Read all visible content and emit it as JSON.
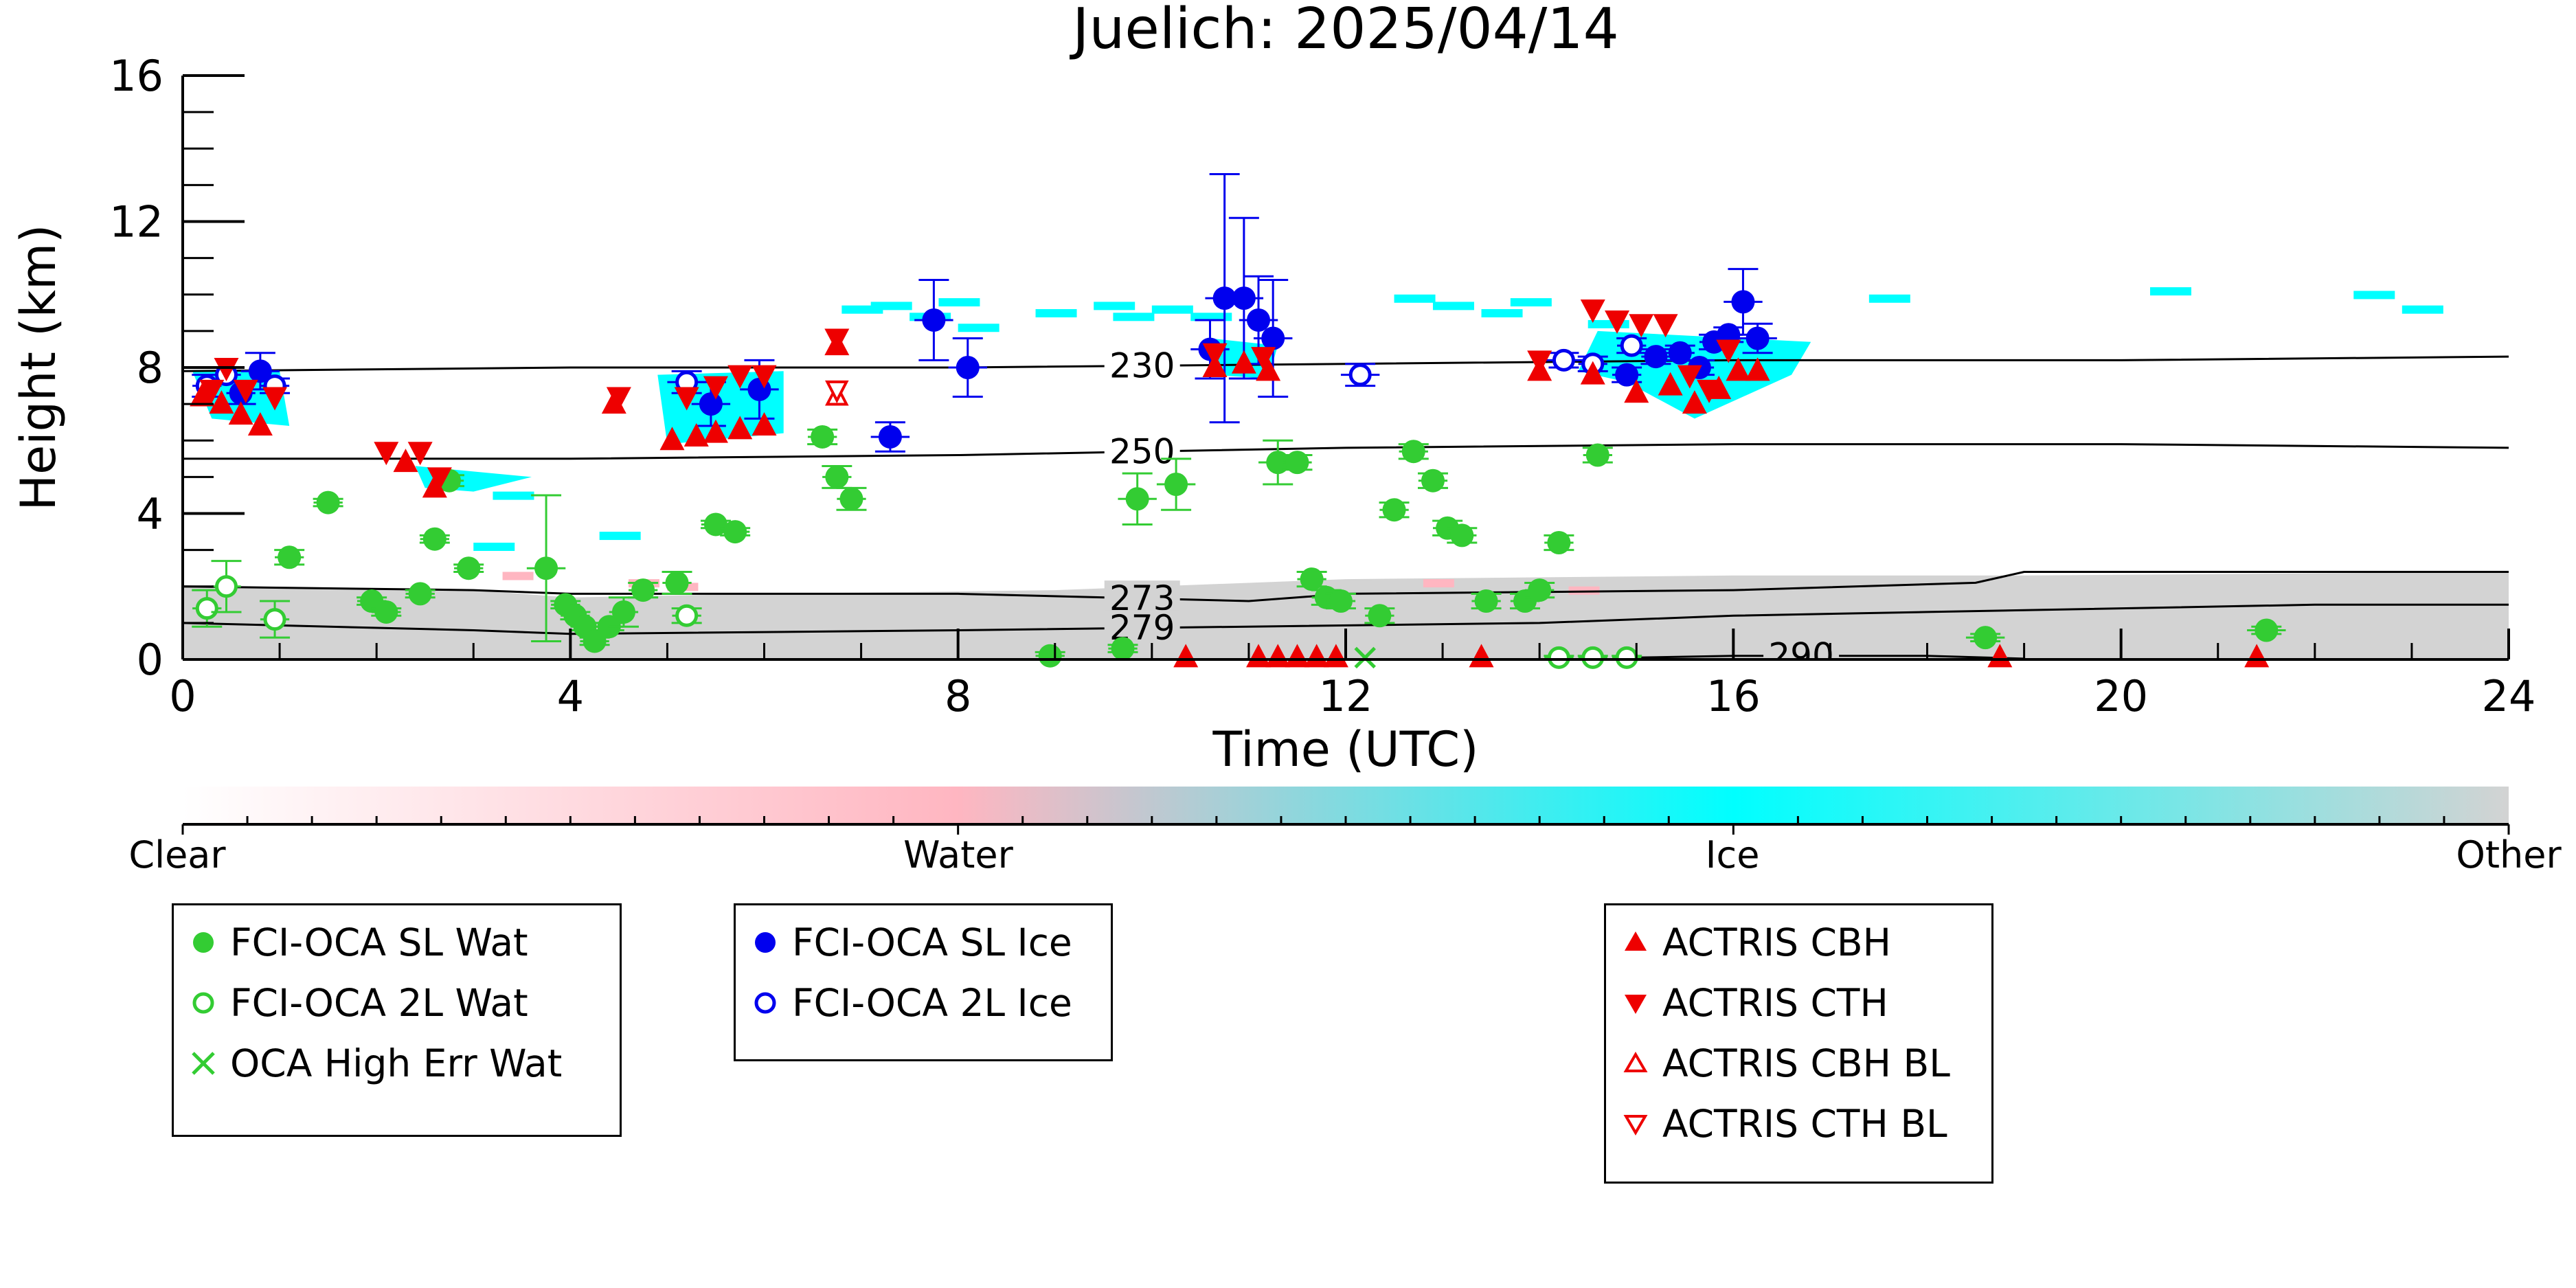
{
  "chart_data": {
    "type": "scatter",
    "title": "Juelich: 2025/04/14",
    "xlabel": "Time (UTC)",
    "ylabel": "Height (km)",
    "xlim": [
      0,
      24
    ],
    "ylim": [
      0,
      16
    ],
    "xticks": [
      0,
      4,
      8,
      12,
      16,
      20,
      24
    ],
    "yticks": [
      0,
      4,
      8,
      12,
      16
    ],
    "xtick_labels": [
      "0",
      "4",
      "8",
      "12",
      "16",
      "20",
      "24"
    ],
    "ytick_labels": [
      "0",
      "4",
      "8",
      "12",
      "16"
    ],
    "isotherms": [
      {
        "label": "230",
        "label_x": 9.9,
        "points": [
          [
            0,
            7.9
          ],
          [
            4,
            8.0
          ],
          [
            8,
            8.0
          ],
          [
            12,
            8.1
          ],
          [
            16,
            8.2
          ],
          [
            20,
            8.2
          ],
          [
            24,
            8.3
          ]
        ]
      },
      {
        "label": "250",
        "label_x": 9.9,
        "points": [
          [
            0,
            5.5
          ],
          [
            4,
            5.5
          ],
          [
            8,
            5.6
          ],
          [
            12,
            5.8
          ],
          [
            16,
            5.9
          ],
          [
            20,
            5.9
          ],
          [
            24,
            5.8
          ]
        ]
      },
      {
        "label": "273",
        "label_x": 9.9,
        "points": [
          [
            0,
            2.0
          ],
          [
            3,
            1.9
          ],
          [
            4,
            1.8
          ],
          [
            8,
            1.8
          ],
          [
            11,
            1.6
          ],
          [
            12,
            1.8
          ],
          [
            16,
            1.9
          ],
          [
            18.5,
            2.1
          ],
          [
            19,
            2.4
          ],
          [
            24,
            2.4
          ]
        ]
      },
      {
        "label": "279",
        "label_x": 9.9,
        "points": [
          [
            0,
            1.0
          ],
          [
            3,
            0.8
          ],
          [
            4,
            0.7
          ],
          [
            8,
            0.8
          ],
          [
            11,
            0.9
          ],
          [
            14,
            1.0
          ],
          [
            16,
            1.2
          ],
          [
            18,
            1.3
          ],
          [
            22,
            1.5
          ],
          [
            24,
            1.5
          ]
        ]
      },
      {
        "label": "290",
        "label_x": 16.7,
        "points": [
          [
            15,
            0.05
          ],
          [
            16,
            0.1
          ],
          [
            18,
            0.1
          ],
          [
            19,
            0.02
          ]
        ]
      }
    ],
    "cloudnet_colorbar": {
      "labels": [
        "Clear",
        "Water",
        "Ice",
        "Other"
      ],
      "colors": [
        "#ffffff",
        "#ffb6c1",
        "#00ffff",
        "#d3d3d3"
      ]
    },
    "series": [
      {
        "name": "FCI-OCA SL Wat",
        "marker": "filled-circle",
        "color": "#33cc33",
        "points": [
          {
            "x": 1.1,
            "y": 2.8,
            "xerr": 0.15,
            "yerr": 0.2
          },
          {
            "x": 1.5,
            "y": 4.3,
            "xerr": 0.15,
            "yerr": 0.1
          },
          {
            "x": 1.95,
            "y": 1.6,
            "xerr": 0.15,
            "yerr": 0.1
          },
          {
            "x": 2.1,
            "y": 1.3,
            "xerr": 0.15,
            "yerr": 0.1
          },
          {
            "x": 2.45,
            "y": 1.8,
            "xerr": 0.15,
            "yerr": 0.1
          },
          {
            "x": 2.6,
            "y": 3.3,
            "xerr": 0.15,
            "yerr": 0.1
          },
          {
            "x": 2.75,
            "y": 4.9,
            "xerr": 0.15,
            "yerr": 0.15
          },
          {
            "x": 2.95,
            "y": 2.5,
            "xerr": 0.15,
            "yerr": 0.1
          },
          {
            "x": 3.75,
            "y": 2.5,
            "xerr": 0.2,
            "yerr": 2.0
          },
          {
            "x": 3.95,
            "y": 1.5,
            "xerr": 0.15,
            "yerr": 0.1
          },
          {
            "x": 4.05,
            "y": 1.2,
            "xerr": 0.15,
            "yerr": 0.1
          },
          {
            "x": 4.15,
            "y": 0.9,
            "xerr": 0.15,
            "yerr": 0.1
          },
          {
            "x": 4.25,
            "y": 0.5,
            "xerr": 0.15,
            "yerr": 0.1
          },
          {
            "x": 4.4,
            "y": 0.9,
            "xerr": 0.15,
            "yerr": 0.1
          },
          {
            "x": 4.55,
            "y": 1.3,
            "xerr": 0.15,
            "yerr": 0.4
          },
          {
            "x": 4.75,
            "y": 1.9,
            "xerr": 0.15,
            "yerr": 0.2
          },
          {
            "x": 5.1,
            "y": 2.1,
            "xerr": 0.15,
            "yerr": 0.3
          },
          {
            "x": 5.5,
            "y": 3.7,
            "xerr": 0.15,
            "yerr": 0.1
          },
          {
            "x": 5.7,
            "y": 3.5,
            "xerr": 0.15,
            "yerr": 0.1
          },
          {
            "x": 6.6,
            "y": 6.1,
            "xerr": 0.15,
            "yerr": 0.2
          },
          {
            "x": 6.75,
            "y": 5.0,
            "xerr": 0.15,
            "yerr": 0.3
          },
          {
            "x": 6.9,
            "y": 4.4,
            "xerr": 0.15,
            "yerr": 0.3
          },
          {
            "x": 8.95,
            "y": 0.1,
            "xerr": 0.15,
            "yerr": 0.1
          },
          {
            "x": 9.7,
            "y": 0.3,
            "xerr": 0.15,
            "yerr": 0.1
          },
          {
            "x": 9.85,
            "y": 4.4,
            "xerr": 0.2,
            "yerr": 0.7
          },
          {
            "x": 10.25,
            "y": 4.8,
            "xerr": 0.2,
            "yerr": 0.7
          },
          {
            "x": 11.3,
            "y": 5.4,
            "xerr": 0.2,
            "yerr": 0.6
          },
          {
            "x": 11.5,
            "y": 5.4,
            "xerr": 0.15,
            "yerr": 0.2
          },
          {
            "x": 11.65,
            "y": 2.2,
            "xerr": 0.15,
            "yerr": 0.2
          },
          {
            "x": 11.8,
            "y": 1.7,
            "xerr": 0.15,
            "yerr": 0.2
          },
          {
            "x": 11.95,
            "y": 1.6,
            "xerr": 0.15,
            "yerr": 0.2
          },
          {
            "x": 12.35,
            "y": 1.2,
            "xerr": 0.15,
            "yerr": 0.2
          },
          {
            "x": 12.5,
            "y": 4.1,
            "xerr": 0.15,
            "yerr": 0.2
          },
          {
            "x": 12.7,
            "y": 5.7,
            "xerr": 0.15,
            "yerr": 0.2
          },
          {
            "x": 12.9,
            "y": 4.9,
            "xerr": 0.15,
            "yerr": 0.2
          },
          {
            "x": 13.05,
            "y": 3.6,
            "xerr": 0.15,
            "yerr": 0.2
          },
          {
            "x": 13.2,
            "y": 3.4,
            "xerr": 0.15,
            "yerr": 0.2
          },
          {
            "x": 13.45,
            "y": 1.6,
            "xerr": 0.15,
            "yerr": 0.2
          },
          {
            "x": 13.85,
            "y": 1.6,
            "xerr": 0.15,
            "yerr": 0.2
          },
          {
            "x": 14.0,
            "y": 1.9,
            "xerr": 0.15,
            "yerr": 0.2
          },
          {
            "x": 14.2,
            "y": 3.2,
            "xerr": 0.15,
            "yerr": 0.2
          },
          {
            "x": 14.6,
            "y": 5.6,
            "xerr": 0.15,
            "yerr": 0.2
          },
          {
            "x": 18.6,
            "y": 0.6,
            "xerr": 0.2,
            "yerr": 0.1
          },
          {
            "x": 21.5,
            "y": 0.8,
            "xerr": 0.2,
            "yerr": 0.1
          }
        ]
      },
      {
        "name": "FCI-OCA 2L Wat",
        "marker": "open-circle",
        "color": "#33cc33",
        "points": [
          {
            "x": 0.25,
            "y": 1.4,
            "xerr": 0.15,
            "yerr": 0.5
          },
          {
            "x": 0.45,
            "y": 2.0,
            "xerr": 0.15,
            "yerr": 0.7
          },
          {
            "x": 0.95,
            "y": 1.1,
            "xerr": 0.15,
            "yerr": 0.5
          },
          {
            "x": 5.2,
            "y": 1.2,
            "xerr": 0.15,
            "yerr": 0.2
          },
          {
            "x": 14.2,
            "y": 0.05,
            "xerr": 0.15,
            "yerr": 0.05
          },
          {
            "x": 14.55,
            "y": 0.05,
            "xerr": 0.15,
            "yerr": 0.05
          },
          {
            "x": 14.9,
            "y": 0.05,
            "xerr": 0.15,
            "yerr": 0.05
          }
        ]
      },
      {
        "name": "OCA High Err Wat",
        "marker": "x",
        "color": "#33cc33",
        "points": [
          {
            "x": 12.2,
            "y": 0.05
          }
        ]
      },
      {
        "name": "FCI-OCA SL Ice",
        "marker": "filled-circle",
        "color": "#0000ee",
        "points": [
          {
            "x": 0.6,
            "y": 7.3,
            "xerr": 0.15,
            "yerr": 0.3
          },
          {
            "x": 0.8,
            "y": 7.9,
            "xerr": 0.2,
            "yerr": 0.5
          },
          {
            "x": 5.45,
            "y": 7.0,
            "xerr": 0.2,
            "yerr": 0.6
          },
          {
            "x": 5.95,
            "y": 7.4,
            "xerr": 0.2,
            "yerr": 0.8
          },
          {
            "x": 7.3,
            "y": 6.1,
            "xerr": 0.2,
            "yerr": 0.4
          },
          {
            "x": 7.75,
            "y": 9.3,
            "xerr": 0.2,
            "yerr": 1.1
          },
          {
            "x": 8.1,
            "y": 8.0,
            "xerr": 0.2,
            "yerr": 0.8
          },
          {
            "x": 10.6,
            "y": 8.5,
            "xerr": 0.2,
            "yerr": 0.8
          },
          {
            "x": 10.75,
            "y": 9.9,
            "xerr": 0.2,
            "yerr": 3.4
          },
          {
            "x": 10.95,
            "y": 9.9,
            "xerr": 0.2,
            "yerr": 2.2
          },
          {
            "x": 11.1,
            "y": 9.3,
            "xerr": 0.2,
            "yerr": 1.2
          },
          {
            "x": 11.25,
            "y": 8.8,
            "xerr": 0.2,
            "yerr": 1.6
          },
          {
            "x": 14.9,
            "y": 7.8,
            "xerr": 0.15,
            "yerr": 0.2
          },
          {
            "x": 15.2,
            "y": 8.3,
            "xerr": 0.15,
            "yerr": 0.2
          },
          {
            "x": 15.45,
            "y": 8.4,
            "xerr": 0.15,
            "yerr": 0.2
          },
          {
            "x": 15.65,
            "y": 8.0,
            "xerr": 0.15,
            "yerr": 0.2
          },
          {
            "x": 15.8,
            "y": 8.7,
            "xerr": 0.15,
            "yerr": 0.2
          },
          {
            "x": 15.95,
            "y": 8.9,
            "xerr": 0.15,
            "yerr": 0.2
          },
          {
            "x": 16.1,
            "y": 9.8,
            "xerr": 0.2,
            "yerr": 0.9
          },
          {
            "x": 16.25,
            "y": 8.8,
            "xerr": 0.2,
            "yerr": 0.4
          }
        ]
      },
      {
        "name": "FCI-OCA 2L Ice",
        "marker": "open-circle",
        "color": "#0000ee",
        "points": [
          {
            "x": 0.25,
            "y": 7.5,
            "xerr": 0.15,
            "yerr": 0.3
          },
          {
            "x": 0.45,
            "y": 7.8,
            "xerr": 0.15,
            "yerr": 0.2
          },
          {
            "x": 0.95,
            "y": 7.5,
            "xerr": 0.15,
            "yerr": 0.2
          },
          {
            "x": 5.2,
            "y": 7.6,
            "xerr": 0.2,
            "yerr": 0.3
          },
          {
            "x": 12.15,
            "y": 7.8,
            "xerr": 0.2,
            "yerr": 0.3
          },
          {
            "x": 14.25,
            "y": 8.2,
            "xerr": 0.2,
            "yerr": 0.2
          },
          {
            "x": 14.55,
            "y": 8.1,
            "xerr": 0.15,
            "yerr": 0.2
          },
          {
            "x": 14.95,
            "y": 8.6,
            "xerr": 0.15,
            "yerr": 0.2
          }
        ]
      },
      {
        "name": "ACTRIS CBH",
        "marker": "triangle-up",
        "color": "#ee0000",
        "points": [
          {
            "x": 0.2,
            "y": 7.2
          },
          {
            "x": 0.4,
            "y": 7.0
          },
          {
            "x": 0.6,
            "y": 6.7
          },
          {
            "x": 0.8,
            "y": 6.4
          },
          {
            "x": 2.3,
            "y": 5.4
          },
          {
            "x": 2.6,
            "y": 4.7
          },
          {
            "x": 4.45,
            "y": 7.0
          },
          {
            "x": 5.05,
            "y": 6.0
          },
          {
            "x": 5.3,
            "y": 6.1
          },
          {
            "x": 5.5,
            "y": 6.2
          },
          {
            "x": 5.75,
            "y": 6.3
          },
          {
            "x": 6.0,
            "y": 6.4
          },
          {
            "x": 6.75,
            "y": 8.6
          },
          {
            "x": 10.35,
            "y": 0.05
          },
          {
            "x": 10.65,
            "y": 8.0
          },
          {
            "x": 10.95,
            "y": 8.1
          },
          {
            "x": 11.2,
            "y": 7.9
          },
          {
            "x": 11.1,
            "y": 0.05
          },
          {
            "x": 11.3,
            "y": 0.05
          },
          {
            "x": 11.5,
            "y": 0.05
          },
          {
            "x": 11.7,
            "y": 0.05
          },
          {
            "x": 11.9,
            "y": 0.05
          },
          {
            "x": 13.4,
            "y": 0.05
          },
          {
            "x": 14.0,
            "y": 7.9
          },
          {
            "x": 14.55,
            "y": 7.8
          },
          {
            "x": 15.0,
            "y": 7.3
          },
          {
            "x": 15.35,
            "y": 7.5
          },
          {
            "x": 15.6,
            "y": 7.0
          },
          {
            "x": 15.85,
            "y": 7.4
          },
          {
            "x": 16.05,
            "y": 7.9
          },
          {
            "x": 16.25,
            "y": 7.9
          },
          {
            "x": 18.75,
            "y": 0.05
          },
          {
            "x": 21.4,
            "y": 0.05
          }
        ]
      },
      {
        "name": "ACTRIS CTH",
        "marker": "triangle-down",
        "color": "#ee0000",
        "points": [
          {
            "x": 0.3,
            "y": 7.4
          },
          {
            "x": 0.45,
            "y": 8.0
          },
          {
            "x": 0.65,
            "y": 7.4
          },
          {
            "x": 0.95,
            "y": 7.2
          },
          {
            "x": 2.1,
            "y": 5.7
          },
          {
            "x": 2.45,
            "y": 5.7
          },
          {
            "x": 2.65,
            "y": 5.0
          },
          {
            "x": 4.5,
            "y": 7.2
          },
          {
            "x": 5.2,
            "y": 7.2
          },
          {
            "x": 5.5,
            "y": 7.5
          },
          {
            "x": 5.75,
            "y": 7.8
          },
          {
            "x": 6.0,
            "y": 7.8
          },
          {
            "x": 6.75,
            "y": 8.8
          },
          {
            "x": 10.65,
            "y": 8.4
          },
          {
            "x": 11.15,
            "y": 8.3
          },
          {
            "x": 14.0,
            "y": 8.2
          },
          {
            "x": 14.55,
            "y": 9.6
          },
          {
            "x": 14.8,
            "y": 9.3
          },
          {
            "x": 15.05,
            "y": 9.2
          },
          {
            "x": 15.3,
            "y": 9.2
          },
          {
            "x": 15.55,
            "y": 7.8
          },
          {
            "x": 15.75,
            "y": 7.4
          },
          {
            "x": 15.95,
            "y": 8.5
          }
        ]
      },
      {
        "name": "ACTRIS CBH BL",
        "marker": "open-triangle-up",
        "color": "#ee0000",
        "points": [
          {
            "x": 6.75,
            "y": 7.2
          }
        ]
      },
      {
        "name": "ACTRIS CTH BL",
        "marker": "open-triangle-down",
        "color": "#ee0000",
        "points": [
          {
            "x": 6.75,
            "y": 7.4
          }
        ]
      }
    ],
    "legend_groups": [
      [
        "FCI-OCA SL Wat",
        "FCI-OCA 2L Wat",
        "OCA High Err Wat"
      ],
      [
        "FCI-OCA SL Ice",
        "FCI-OCA 2L Ice"
      ],
      [
        "ACTRIS CBH",
        "ACTRIS CTH",
        "ACTRIS CBH BL",
        "ACTRIS CTH BL"
      ]
    ],
    "grid": false,
    "legend_placement": "below"
  }
}
